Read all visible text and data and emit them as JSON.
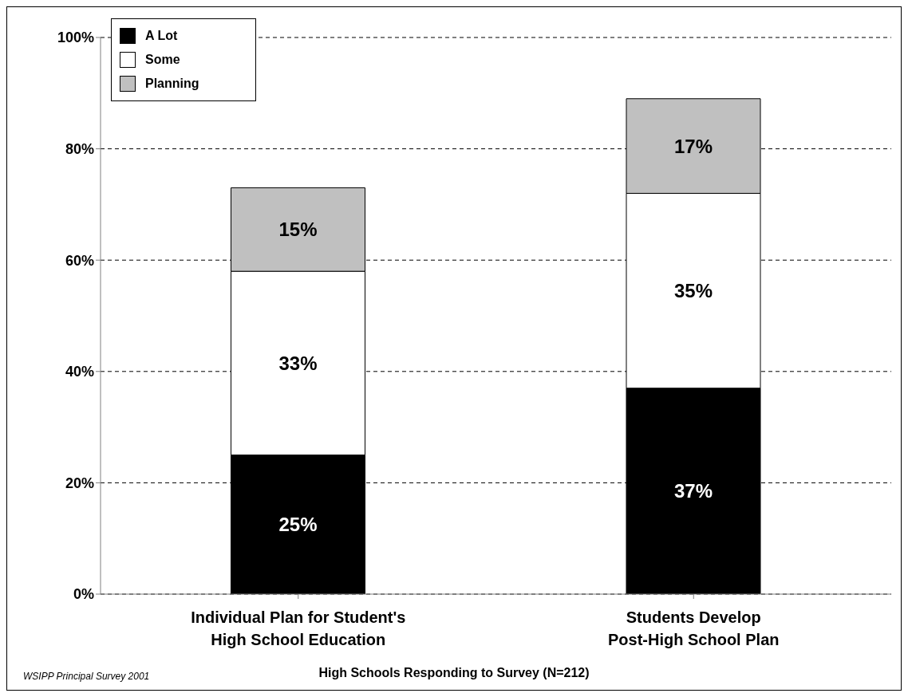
{
  "chart_data": {
    "type": "bar",
    "stacked": true,
    "categories": [
      "Individual Plan for Student's\nHigh School Education",
      "Students Develop\nPost-High School Plan"
    ],
    "series": [
      {
        "name": "A Lot",
        "color": "#000000",
        "values": [
          25,
          37
        ],
        "value_labels": [
          "25%",
          "37%"
        ]
      },
      {
        "name": "Some",
        "color": "#ffffff",
        "values": [
          33,
          35
        ],
        "value_labels": [
          "33%",
          "35%"
        ]
      },
      {
        "name": "Planning",
        "color": "#c0c0c0",
        "values": [
          15,
          17
        ],
        "value_labels": [
          "15%",
          "17%"
        ]
      }
    ],
    "ylim": [
      0,
      100
    ],
    "yticks": [
      {
        "value": 0,
        "label": "0%"
      },
      {
        "value": 20,
        "label": "20%"
      },
      {
        "value": 40,
        "label": "40%"
      },
      {
        "value": 60,
        "label": "60%"
      },
      {
        "value": 80,
        "label": "80%"
      },
      {
        "value": 100,
        "label": "100%"
      }
    ],
    "grid": "y",
    "legend": "top left",
    "xlabel": "High Schools Responding to Survey (N=212)",
    "annotations": [
      "WSIPP Principal Survey 2001"
    ]
  }
}
